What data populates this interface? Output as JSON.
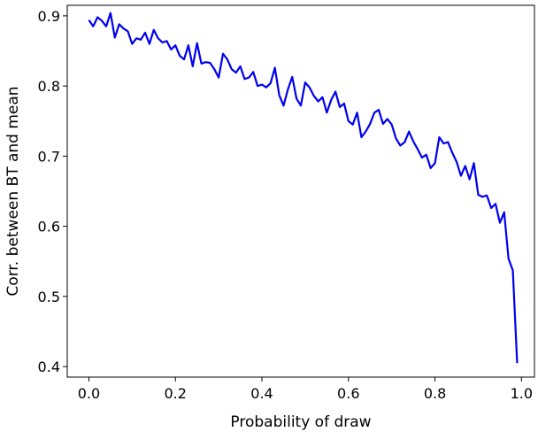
{
  "chart_data": {
    "type": "line",
    "title": "",
    "xlabel": "Probability of draw",
    "ylabel": "Corr. between BT and mean",
    "xlim": [
      -0.05,
      1.03
    ],
    "ylim": [
      0.385,
      0.915
    ],
    "x_ticks": [
      0.0,
      0.2,
      0.4,
      0.6,
      0.8,
      1.0
    ],
    "x_tick_labels": [
      "0.0",
      "0.2",
      "0.4",
      "0.6",
      "0.8",
      "1.0"
    ],
    "y_ticks": [
      0.4,
      0.5,
      0.6,
      0.7,
      0.8,
      0.9
    ],
    "y_tick_labels": [
      "0.4",
      "0.5",
      "0.6",
      "0.7",
      "0.8",
      "0.9"
    ],
    "grid": false,
    "legend": "none",
    "line_color": "#0000ee",
    "series": [
      {
        "x": [
          0.0,
          0.01,
          0.02,
          0.03,
          0.04,
          0.05,
          0.06,
          0.07,
          0.08,
          0.09,
          0.1,
          0.11,
          0.12,
          0.13,
          0.14,
          0.15,
          0.16,
          0.17,
          0.18,
          0.19,
          0.2,
          0.21,
          0.22,
          0.23,
          0.24,
          0.25,
          0.26,
          0.27,
          0.28,
          0.29,
          0.3,
          0.31,
          0.32,
          0.33,
          0.34,
          0.35,
          0.36,
          0.37,
          0.38,
          0.39,
          0.4,
          0.41,
          0.42,
          0.43,
          0.44,
          0.45,
          0.46,
          0.47,
          0.48,
          0.49,
          0.5,
          0.51,
          0.52,
          0.53,
          0.54,
          0.55,
          0.56,
          0.57,
          0.58,
          0.59,
          0.6,
          0.61,
          0.62,
          0.63,
          0.64,
          0.65,
          0.66,
          0.67,
          0.68,
          0.69,
          0.7,
          0.71,
          0.72,
          0.73,
          0.74,
          0.75,
          0.76,
          0.77,
          0.78,
          0.79,
          0.8,
          0.81,
          0.82,
          0.83,
          0.84,
          0.85,
          0.86,
          0.87,
          0.88,
          0.89,
          0.9,
          0.91,
          0.92,
          0.93,
          0.94,
          0.95,
          0.96,
          0.97,
          0.98,
          0.99
        ],
        "y": [
          0.894,
          0.885,
          0.898,
          0.893,
          0.885,
          0.904,
          0.869,
          0.888,
          0.882,
          0.878,
          0.86,
          0.868,
          0.866,
          0.876,
          0.86,
          0.88,
          0.868,
          0.862,
          0.864,
          0.852,
          0.858,
          0.843,
          0.838,
          0.858,
          0.828,
          0.861,
          0.832,
          0.834,
          0.833,
          0.824,
          0.812,
          0.846,
          0.838,
          0.824,
          0.819,
          0.828,
          0.81,
          0.812,
          0.82,
          0.8,
          0.802,
          0.798,
          0.804,
          0.826,
          0.787,
          0.772,
          0.795,
          0.813,
          0.782,
          0.772,
          0.805,
          0.798,
          0.786,
          0.778,
          0.784,
          0.762,
          0.78,
          0.792,
          0.77,
          0.775,
          0.75,
          0.745,
          0.762,
          0.727,
          0.735,
          0.746,
          0.762,
          0.766,
          0.746,
          0.753,
          0.745,
          0.725,
          0.715,
          0.72,
          0.735,
          0.721,
          0.71,
          0.698,
          0.702,
          0.683,
          0.69,
          0.727,
          0.718,
          0.72,
          0.705,
          0.692,
          0.672,
          0.686,
          0.667,
          0.69,
          0.645,
          0.642,
          0.644,
          0.626,
          0.632,
          0.605,
          0.62,
          0.554,
          0.537,
          0.405
        ]
      }
    ]
  }
}
